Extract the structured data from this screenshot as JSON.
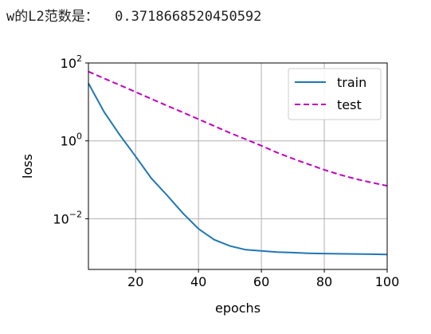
{
  "output_text": "w的L2范数是：  0.3718668520450592",
  "chart_data": {
    "type": "line",
    "title": "",
    "xlabel": "epochs",
    "ylabel": "loss",
    "xlim": [
      5,
      100
    ],
    "ylim": [
      0.0005,
      100
    ],
    "yscale": "log",
    "grid": true,
    "legend": {
      "position": "top-right",
      "entries": [
        "train",
        "test"
      ]
    },
    "x_ticks": [
      20,
      40,
      60,
      80,
      100
    ],
    "y_ticks": [
      {
        "value": 100,
        "base": "10",
        "exp": "2"
      },
      {
        "value": 1,
        "base": "10",
        "exp": "0"
      },
      {
        "value": 0.01,
        "base": "10",
        "exp": "−2"
      }
    ],
    "series": [
      {
        "name": "train",
        "color": "#1f77b4",
        "style": "solid",
        "x": [
          5,
          10,
          15,
          20,
          25,
          30,
          35,
          40,
          45,
          50,
          55,
          60,
          65,
          70,
          75,
          80,
          85,
          90,
          95,
          100
        ],
        "y": [
          30,
          5.5,
          1.4,
          0.4,
          0.11,
          0.04,
          0.014,
          0.0055,
          0.0029,
          0.002,
          0.0016,
          0.0015,
          0.0014,
          0.00135,
          0.0013,
          0.00128,
          0.00126,
          0.00125,
          0.00123,
          0.00121
        ]
      },
      {
        "name": "test",
        "color": "#bf00bf",
        "style": "dashed",
        "x": [
          5,
          10,
          15,
          20,
          25,
          30,
          35,
          40,
          45,
          50,
          55,
          60,
          65,
          70,
          75,
          80,
          85,
          90,
          95,
          100
        ],
        "y": [
          60,
          40,
          27,
          18,
          12,
          8,
          5.4,
          3.6,
          2.4,
          1.6,
          1.1,
          0.75,
          0.5,
          0.35,
          0.25,
          0.18,
          0.135,
          0.105,
          0.085,
          0.07
        ]
      }
    ]
  }
}
